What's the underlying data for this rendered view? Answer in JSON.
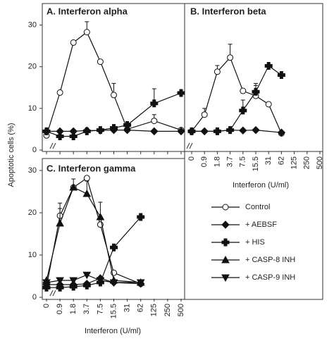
{
  "chart_data": [
    {
      "type": "line",
      "title": "A.  Interferon alpha",
      "y_label": "Apoptotic cells (%)",
      "ylim": [
        0,
        35
      ],
      "yticks": [
        0,
        10,
        20,
        30
      ],
      "series": [
        {
          "name": "Control",
          "marker": "circle",
          "x": [
            "0",
            "0.9",
            "1.8",
            "3.7",
            "7.5",
            "15.5",
            "31",
            "125",
            "500"
          ],
          "values": [
            3.5,
            13.8,
            25.8,
            28.3,
            21.2,
            13.2,
            5.0,
            7.0,
            4.8
          ],
          "errors": [
            null,
            null,
            null,
            2.5,
            null,
            2.8,
            null,
            1.5,
            null
          ]
        },
        {
          "name": "+ AEBSF",
          "marker": "diamond",
          "x": [
            "0",
            "0.9",
            "1.8",
            "3.7",
            "7.5",
            "15.5",
            "31",
            "125",
            "500"
          ],
          "values": [
            4.5,
            4.5,
            4.5,
            4.7,
            4.7,
            4.8,
            4.8,
            4.5,
            4.5
          ],
          "errors": [
            null,
            null,
            null,
            null,
            null,
            null,
            null,
            null,
            null
          ]
        },
        {
          "name": "+ HIS",
          "marker": "plus",
          "x": [
            "0",
            "0.9",
            "1.8",
            "3.7",
            "7.5",
            "15.5",
            "31",
            "125",
            "500"
          ],
          "values": [
            4.5,
            3.3,
            3.3,
            4.5,
            4.8,
            5.3,
            6.0,
            11.2,
            13.7
          ],
          "errors": [
            null,
            null,
            null,
            null,
            null,
            null,
            null,
            3.5,
            null
          ]
        }
      ]
    },
    {
      "type": "line",
      "title": "B.  Interferon beta",
      "x_label": "Interferon  (U/ml)",
      "ylim": [
        0,
        35
      ],
      "categories": [
        "0",
        "0.9",
        "1.8",
        "3.7",
        "7.5",
        "15.5",
        "31",
        "62",
        "125",
        "250",
        "500"
      ],
      "series": [
        {
          "name": "Control",
          "marker": "circle",
          "x": [
            "0",
            "0.9",
            "1.8",
            "3.7",
            "7.5",
            "15.5",
            "31",
            "62"
          ],
          "values": [
            4.5,
            8.5,
            18.8,
            22.2,
            14.2,
            13.0,
            11.0,
            4.0
          ],
          "errors": [
            null,
            1.5,
            1.5,
            3.2,
            null,
            2.5,
            null,
            null
          ]
        },
        {
          "name": "+ AEBSF",
          "marker": "diamond",
          "x": [
            "0",
            "0.9",
            "1.8",
            "3.7",
            "7.5",
            "15.5",
            "62"
          ],
          "values": [
            4.5,
            4.5,
            4.5,
            4.8,
            4.7,
            4.8,
            4.2
          ],
          "errors": [
            null,
            null,
            null,
            null,
            null,
            null,
            null
          ]
        },
        {
          "name": "+ HIS",
          "marker": "plus",
          "x": [
            "0",
            "1.8",
            "3.7",
            "7.5",
            "15.5",
            "31",
            "62"
          ],
          "values": [
            4.5,
            4.5,
            4.8,
            9.5,
            14.0,
            20.2,
            18.0
          ],
          "errors": [
            null,
            null,
            null,
            2.5,
            2.0,
            null,
            null
          ]
        }
      ]
    },
    {
      "type": "line",
      "title": "C.  Interferon gamma",
      "x_label": "Interferon   (U/ml)",
      "ylim": [
        0,
        33
      ],
      "yticks": [
        0,
        10,
        20,
        30
      ],
      "categories": [
        "0",
        "0.9",
        "1.8",
        "3.7",
        "7.5",
        "15.5",
        "31",
        "62",
        "125",
        "250",
        "500"
      ],
      "series": [
        {
          "name": "Control",
          "marker": "circle",
          "x": [
            "0",
            "0.9",
            "1.8",
            "3.7",
            "7.5",
            "15.5",
            "62"
          ],
          "values": [
            2.5,
            19.3,
            26.0,
            28.2,
            17.2,
            5.8,
            3.2
          ],
          "errors": [
            null,
            3.0,
            null,
            null,
            null,
            null,
            null
          ]
        },
        {
          "name": "+ AEBSF",
          "marker": "diamond",
          "x": [
            "0",
            "0.9",
            "1.8",
            "3.7",
            "7.5",
            "15.5",
            "62"
          ],
          "values": [
            3.0,
            3.0,
            3.0,
            3.2,
            4.5,
            3.5,
            3.2
          ],
          "errors": [
            null,
            null,
            null,
            null,
            null,
            null,
            null
          ]
        },
        {
          "name": "+ HIS",
          "marker": "plus",
          "x": [
            "0",
            "0.9",
            "1.8",
            "3.7",
            "7.5",
            "15.5",
            "62"
          ],
          "values": [
            2.3,
            2.3,
            2.5,
            2.8,
            3.5,
            11.8,
            19.0
          ],
          "errors": [
            null,
            null,
            null,
            null,
            null,
            null,
            null
          ]
        },
        {
          "name": "+ CASP-8 INH",
          "marker": "triangle-up",
          "x": [
            "0",
            "0.9",
            "1.8",
            "3.7",
            "7.5",
            "15.5",
            "62"
          ],
          "values": [
            4.0,
            17.5,
            26.0,
            24.5,
            19.0,
            4.0,
            3.5
          ],
          "errors": [
            null,
            3.5,
            2.0,
            3.0,
            3.5,
            null,
            null
          ]
        },
        {
          "name": "+ CASP-9 INH",
          "marker": "triangle-down",
          "x": [
            "0",
            "0.9",
            "1.8",
            "3.7",
            "7.5",
            "15.5",
            "62"
          ],
          "values": [
            3.5,
            4.0,
            4.0,
            5.3,
            4.0,
            3.5,
            3.5
          ],
          "errors": [
            null,
            null,
            null,
            null,
            null,
            null,
            null
          ]
        }
      ]
    }
  ]
}
